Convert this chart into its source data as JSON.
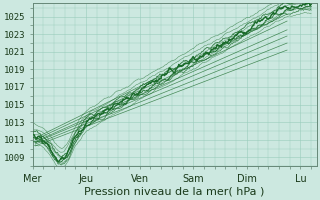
{
  "bg_color": "#cce8e0",
  "grid_color": "#99ccbb",
  "line_color": "#1a6b2a",
  "ylabel_ticks": [
    1009,
    1011,
    1013,
    1015,
    1017,
    1019,
    1021,
    1023,
    1025
  ],
  "ylim": [
    1008.0,
    1026.5
  ],
  "xlim": [
    0.0,
    5.3
  ],
  "xtick_labels": [
    "Mer",
    "Jeu",
    "Ven",
    "Sam",
    "Dim",
    "Lu"
  ],
  "xtick_pos": [
    0.0,
    1.0,
    2.0,
    3.0,
    4.0,
    5.0
  ],
  "xlabel": "Pression niveau de la mer( hPa )",
  "xlabel_fontsize": 8
}
